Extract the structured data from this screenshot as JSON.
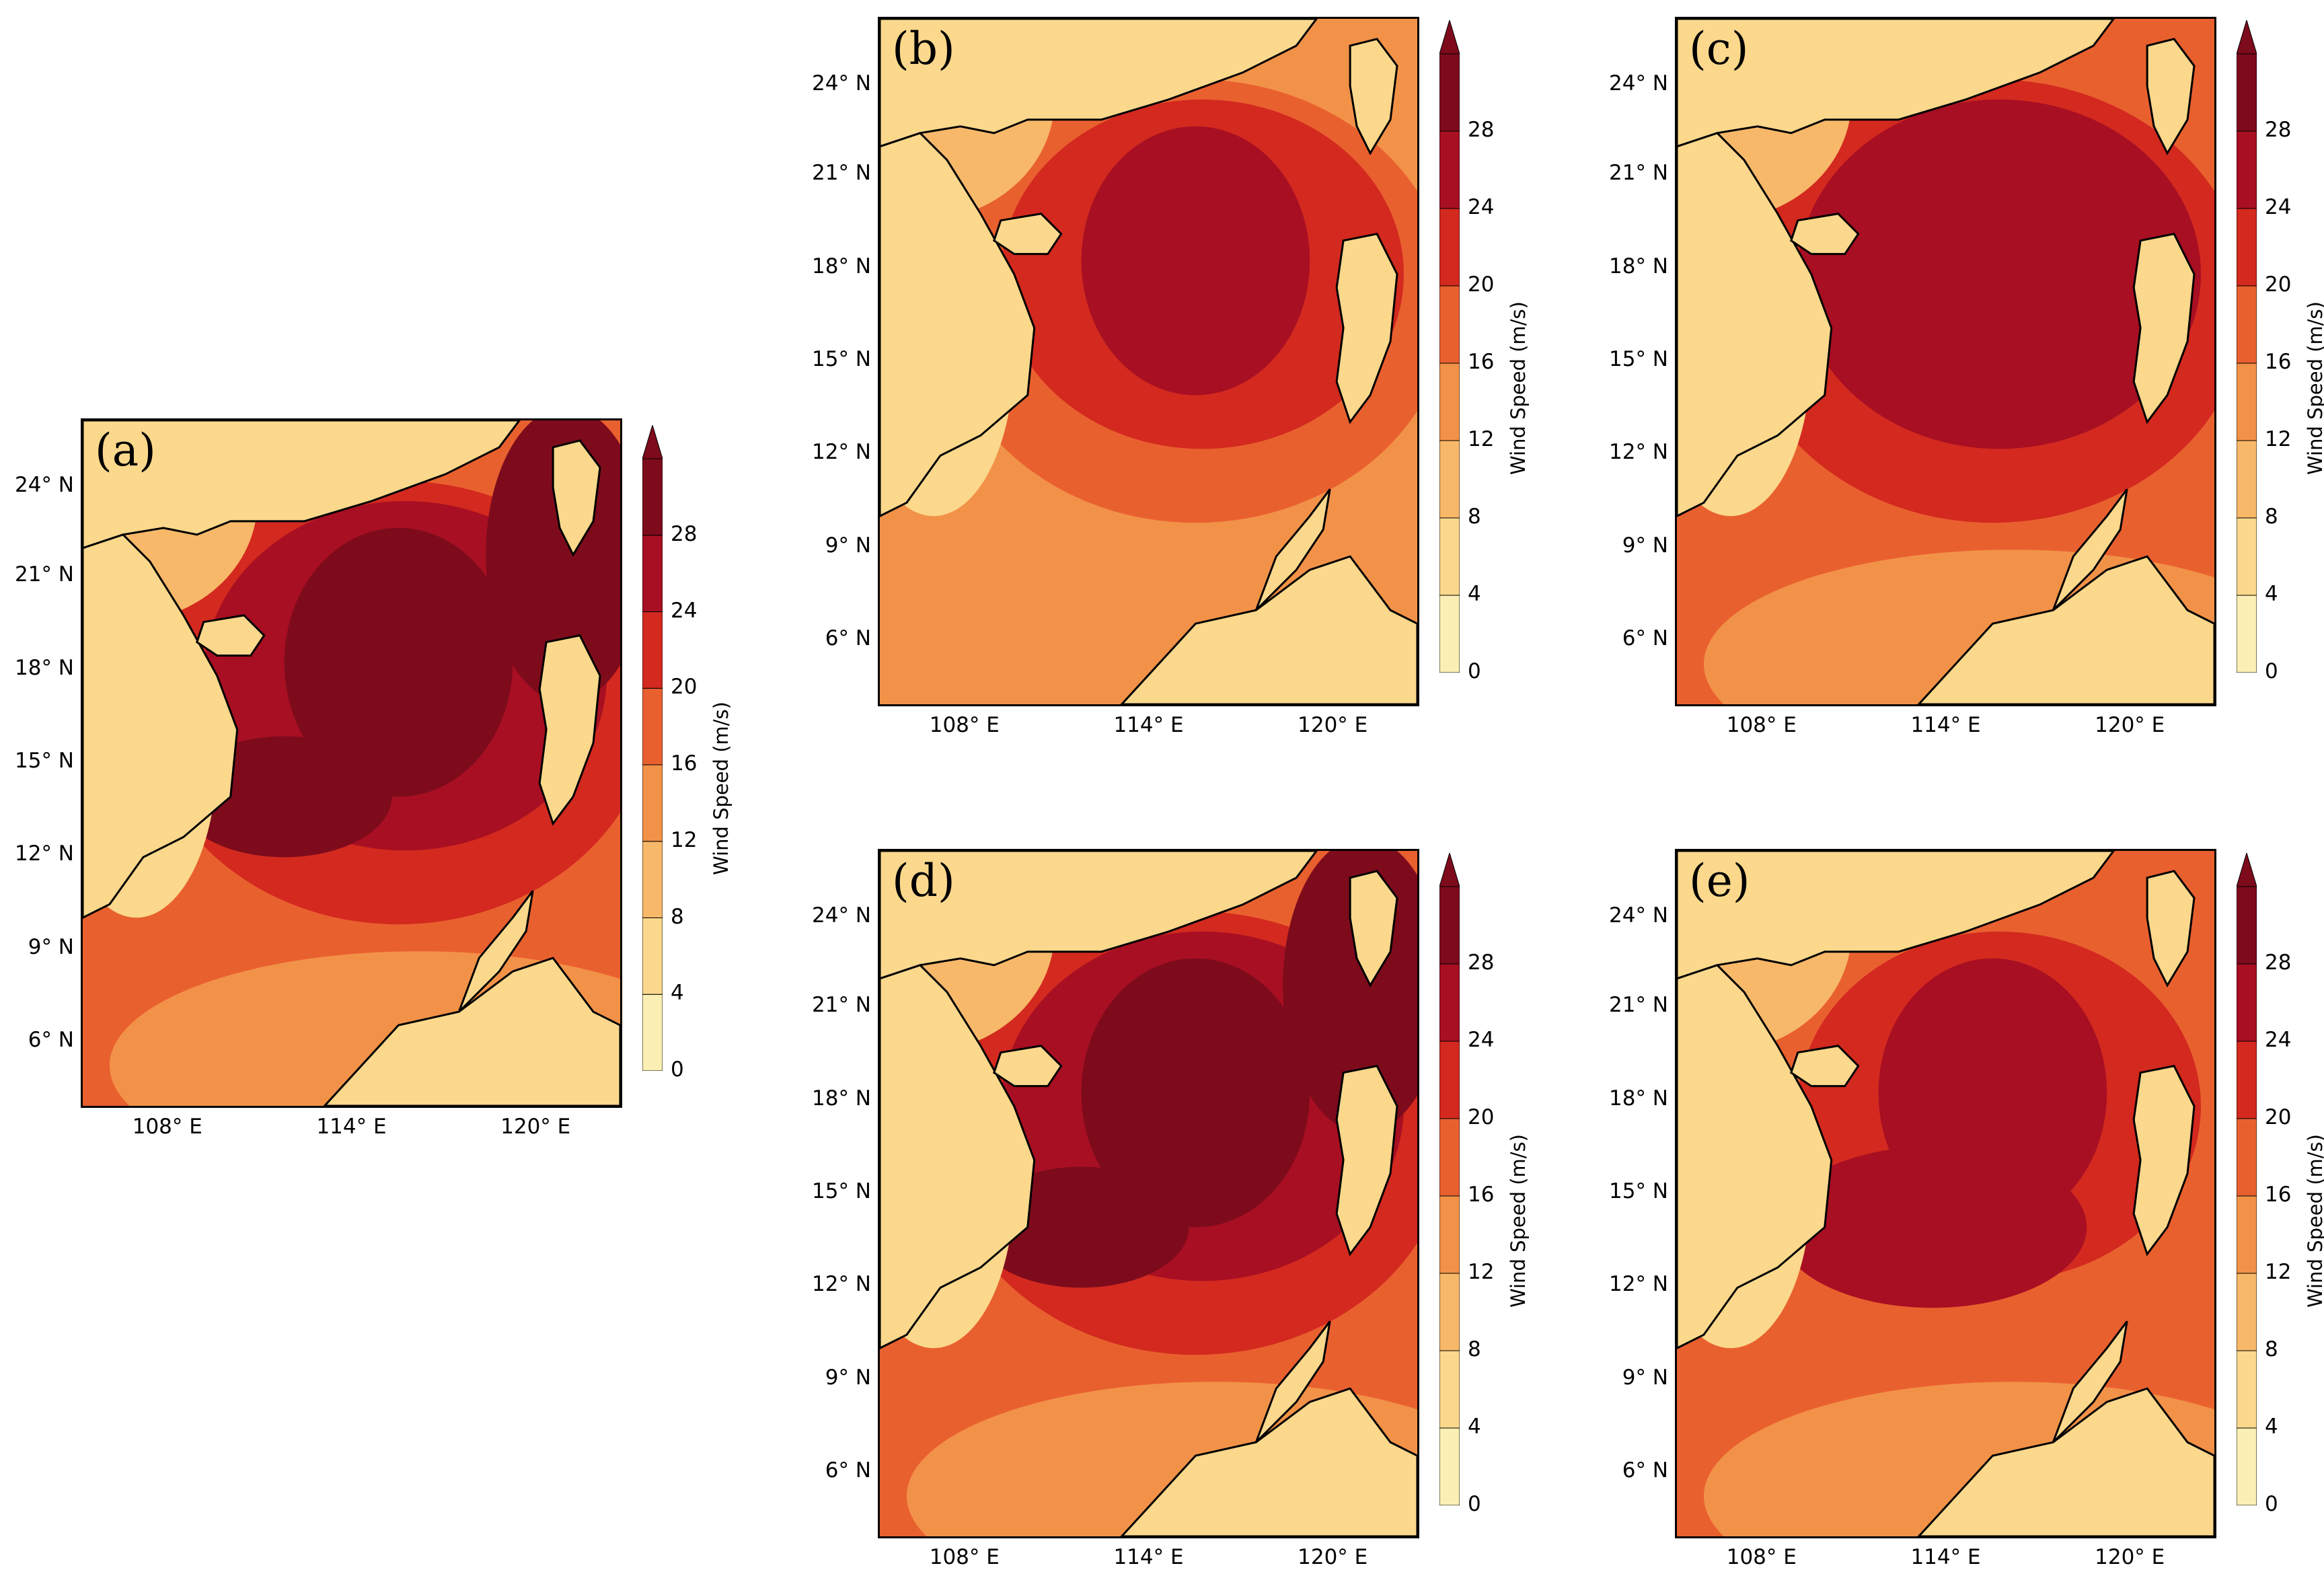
{
  "colorbar": {
    "label": "Wind Speed (m/s)",
    "ticks": [
      "0",
      "4",
      "8",
      "12",
      "16",
      "20",
      "24",
      "28"
    ],
    "levels": [
      0,
      4,
      8,
      12,
      16,
      20,
      24,
      28
    ],
    "colors": [
      "#fcefb4",
      "#fbd88c",
      "#f7b869",
      "#f29248",
      "#e9602f",
      "#d3291f",
      "#a80f22",
      "#7d0b1c"
    ]
  },
  "axes": {
    "lat_labels": [
      "24° N",
      "21° N",
      "18° N",
      "15° N",
      "12° N",
      "9° N",
      "6° N"
    ],
    "lon_labels": [
      "108° E",
      "114° E",
      "120° E"
    ]
  },
  "panels": [
    {
      "label": "(a)"
    },
    {
      "label": "(b)"
    },
    {
      "label": "(c)"
    },
    {
      "label": "(d)"
    },
    {
      "label": "(e)"
    }
  ]
}
